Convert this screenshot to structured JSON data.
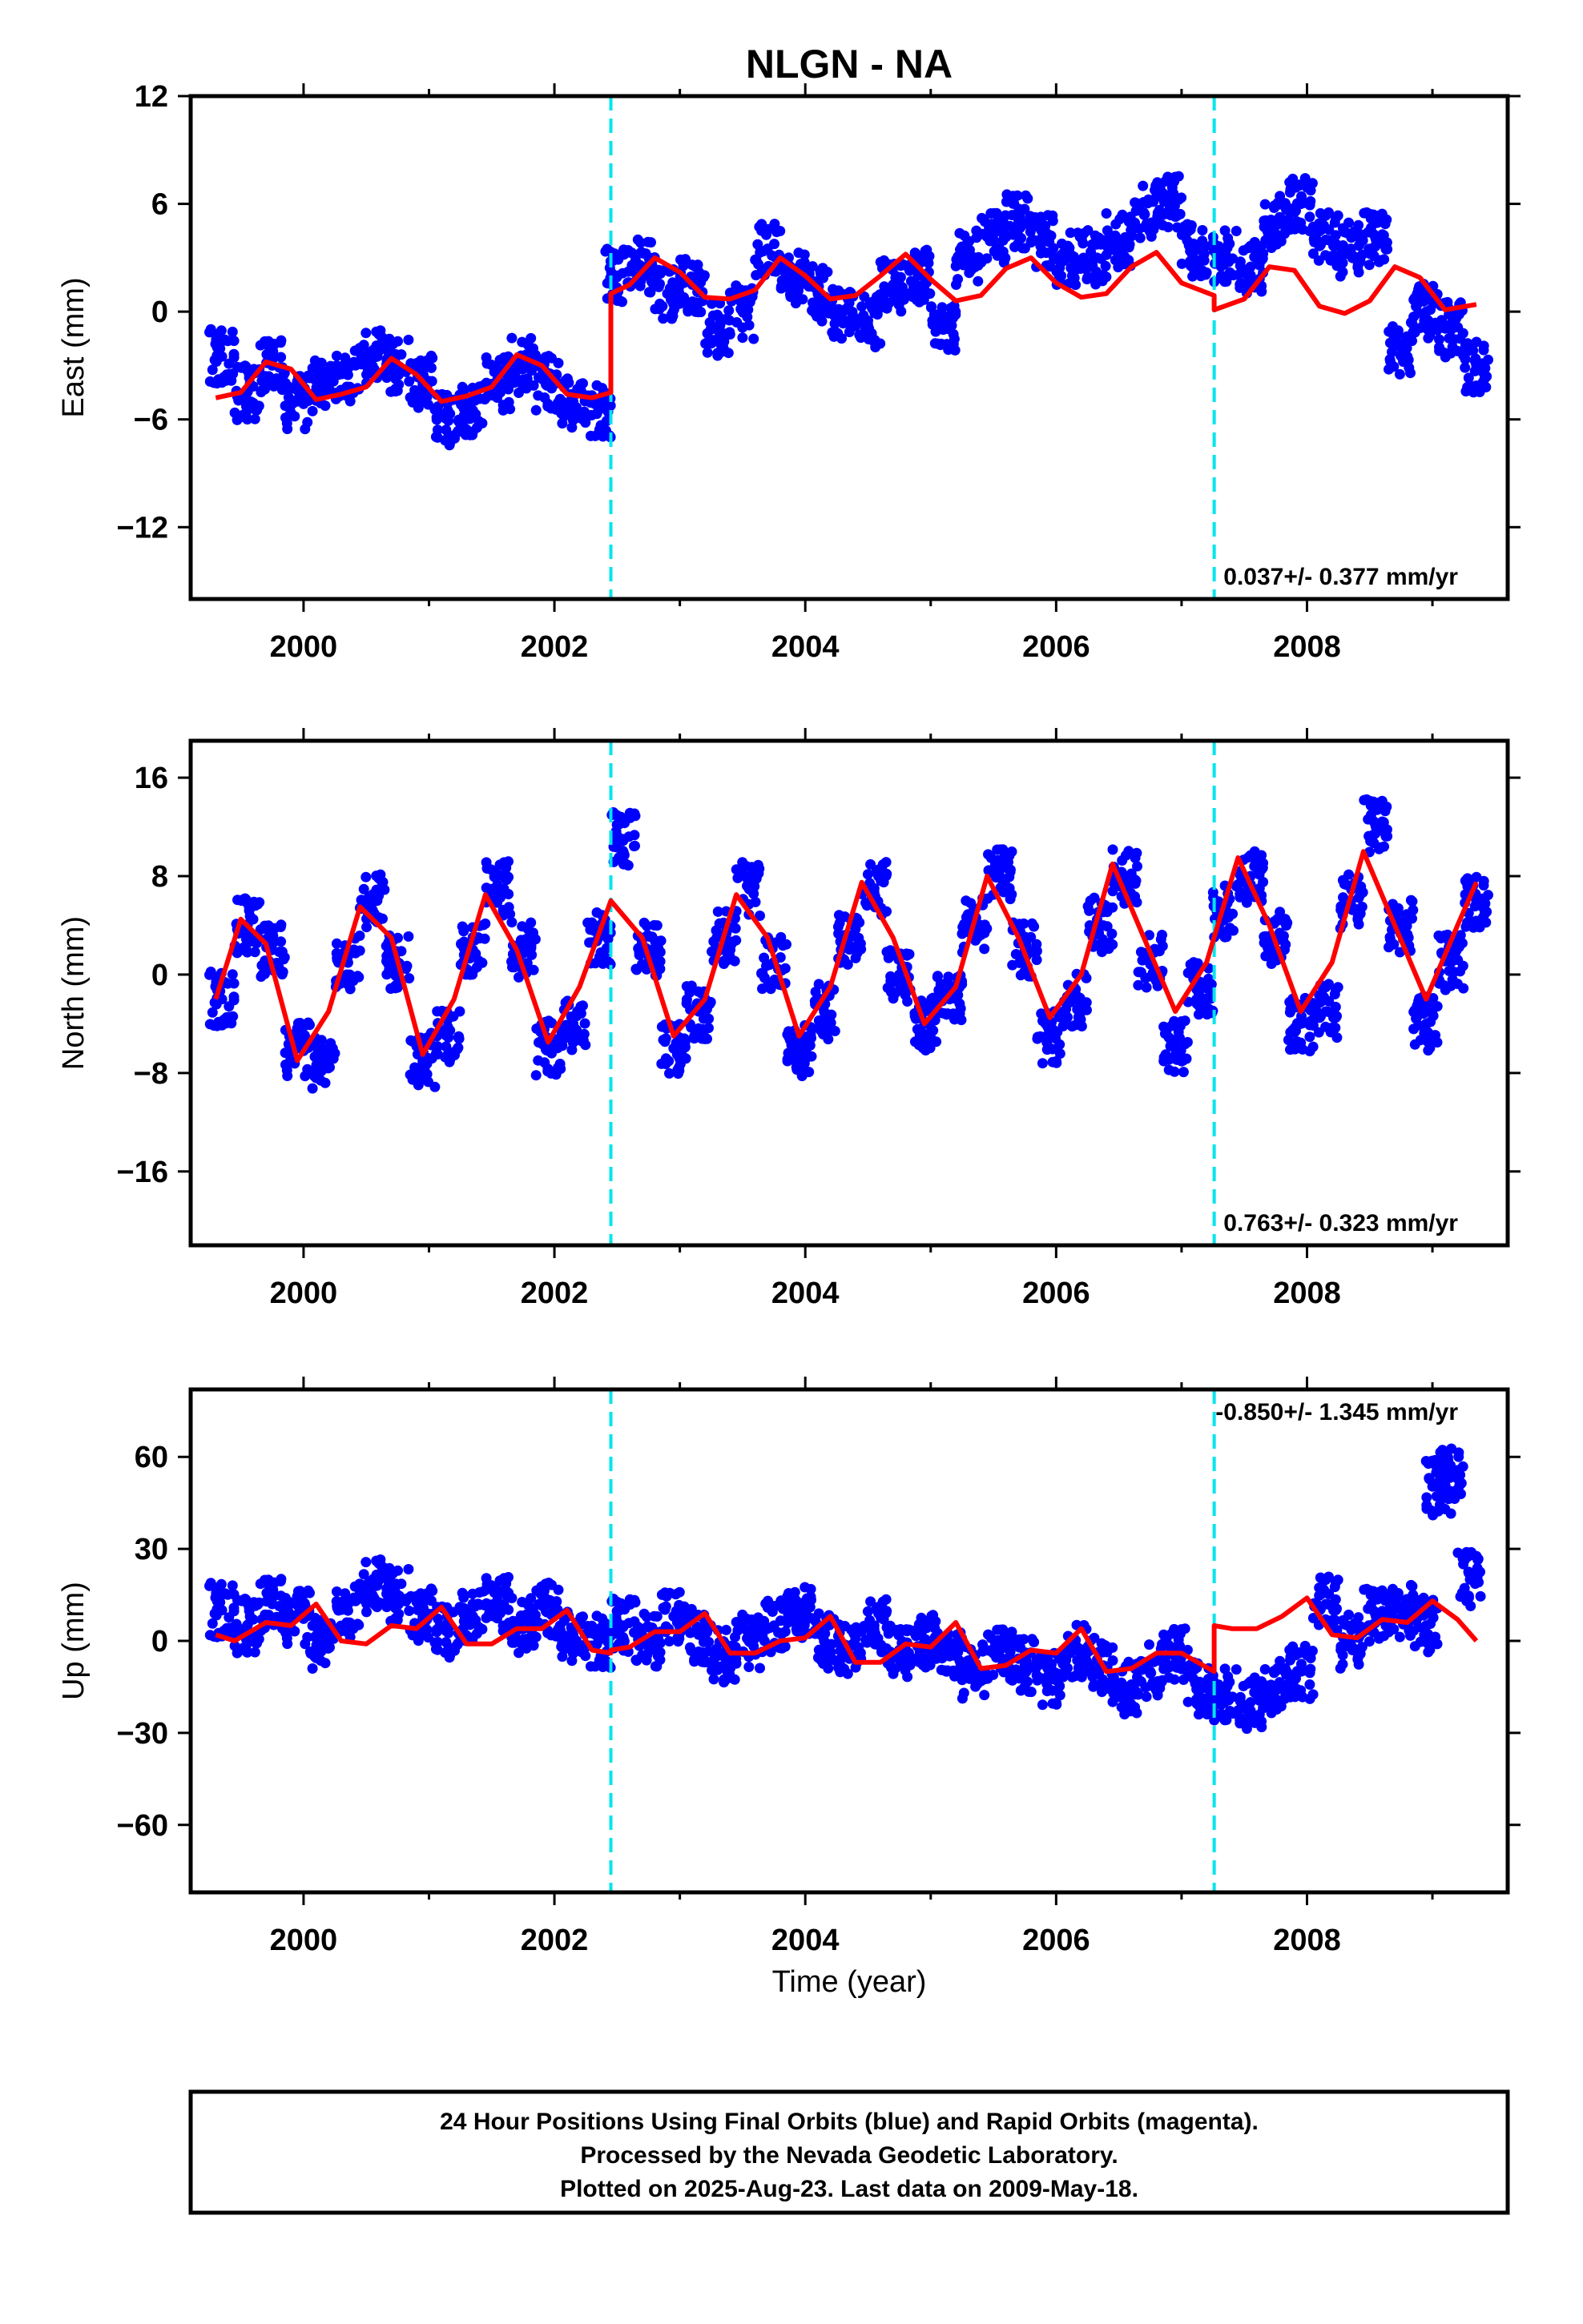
{
  "title": "NLGN - NA",
  "colors": {
    "observations": "#0000ff",
    "model": "#ff0000",
    "offset_marker": "#00e5ee",
    "frame": "#000000"
  },
  "xlabel": "Time (year)",
  "caption": [
    "24 Hour Positions Using Final Orbits (blue) and Rapid Orbits (magenta).",
    "Processed by the Nevada Geodetic Laboratory.",
    "Plotted on 2025-Aug-23. Last data on 2009-May-18."
  ],
  "chart_data": [
    {
      "type": "scatter",
      "name": "east",
      "ylabel": "East (mm)",
      "rate_label": "0.037+/- 0.377 mm/yr",
      "rate_position": "bottom-right",
      "xlim": [
        1999.1,
        2009.6
      ],
      "ylim": [
        -16,
        12
      ],
      "xticks": [
        2000,
        2002,
        2004,
        2006,
        2008
      ],
      "yticks": [
        -12,
        -6,
        0,
        6,
        12
      ],
      "offsets": [
        2002.45,
        2007.26
      ],
      "x": [
        1999.35,
        1999.55,
        1999.75,
        1999.95,
        2000.15,
        2000.35,
        2000.55,
        2000.75,
        2000.95,
        2001.15,
        2001.35,
        2001.55,
        2001.75,
        2001.95,
        2002.15,
        2002.35,
        2002.5,
        2002.7,
        2002.9,
        2003.1,
        2003.3,
        2003.5,
        2003.7,
        2003.9,
        2004.1,
        2004.3,
        2004.5,
        2004.7,
        2004.9,
        2005.1,
        2005.3,
        2005.5,
        2005.7,
        2005.9,
        2006.1,
        2006.3,
        2006.5,
        2006.7,
        2006.9,
        2007.1,
        2007.35,
        2007.55,
        2007.75,
        2007.95,
        2008.15,
        2008.35,
        2008.55,
        2008.75,
        2008.95,
        2009.15,
        2009.35
      ],
      "y": [
        -2.5,
        -4.5,
        -3,
        -5,
        -4,
        -3.5,
        -2.5,
        -3,
        -4,
        -6,
        -5.5,
        -4,
        -3,
        -4,
        -5,
        -5.5,
        2,
        2.5,
        1,
        1.5,
        -1,
        0,
        3.5,
        2,
        1,
        0,
        -0.5,
        1.5,
        2,
        -1,
        3,
        4,
        5,
        4,
        3,
        3,
        4,
        5.5,
        6,
        3.5,
        3,
        2.5,
        5,
        6,
        4,
        3.5,
        4,
        -2,
        0,
        -1,
        -3
      ],
      "model": {
        "x": [
          1999.3,
          1999.5,
          1999.7,
          1999.9,
          2000.1,
          2000.3,
          2000.5,
          2000.7,
          2000.9,
          2001.1,
          2001.3,
          2001.5,
          2001.7,
          2001.9,
          2002.1,
          2002.3,
          2002.45,
          2002.45,
          2002.6,
          2002.8,
          2003.0,
          2003.2,
          2003.4,
          2003.6,
          2003.8,
          2004.0,
          2004.2,
          2004.4,
          2004.6,
          2004.8,
          2005.0,
          2005.2,
          2005.4,
          2005.6,
          2005.8,
          2006.0,
          2006.2,
          2006.4,
          2006.6,
          2006.8,
          2007.0,
          2007.26,
          2007.26,
          2007.5,
          2007.7,
          2007.9,
          2008.1,
          2008.3,
          2008.5,
          2008.7,
          2008.9,
          2009.1,
          2009.35
        ],
        "y": [
          -4.8,
          -4.5,
          -2.8,
          -3.2,
          -4.9,
          -4.6,
          -4.2,
          -2.6,
          -3.5,
          -5.0,
          -4.7,
          -4.2,
          -2.4,
          -3.0,
          -4.6,
          -4.8,
          -4.5,
          1.0,
          1.5,
          3.0,
          2.2,
          0.8,
          0.7,
          1.2,
          3.0,
          2.0,
          0.7,
          0.9,
          2.0,
          3.2,
          1.8,
          0.6,
          0.9,
          2.4,
          3.0,
          1.6,
          0.8,
          1.0,
          2.5,
          3.3,
          1.6,
          0.9,
          0.1,
          0.7,
          2.5,
          2.3,
          0.3,
          -0.1,
          0.6,
          2.5,
          1.9,
          0.1,
          0.4
        ]
      }
    },
    {
      "type": "scatter",
      "name": "north",
      "ylabel": "North (mm)",
      "rate_label": "0.763+/- 0.323 mm/yr",
      "rate_position": "bottom-right",
      "xlim": [
        1999.1,
        2009.6
      ],
      "ylim": [
        -22,
        19
      ],
      "xticks": [
        2000,
        2002,
        2004,
        2006,
        2008
      ],
      "yticks": [
        -16,
        -8,
        0,
        8,
        16
      ],
      "offsets": [
        2002.45,
        2007.26
      ],
      "x": [
        1999.35,
        1999.55,
        1999.75,
        1999.95,
        2000.15,
        2000.35,
        2000.55,
        2000.75,
        2000.95,
        2001.15,
        2001.35,
        2001.55,
        2001.75,
        2001.95,
        2002.15,
        2002.35,
        2002.55,
        2002.75,
        2002.95,
        2003.15,
        2003.35,
        2003.55,
        2003.75,
        2003.95,
        2004.15,
        2004.35,
        2004.55,
        2004.75,
        2004.95,
        2005.15,
        2005.35,
        2005.55,
        2005.75,
        2005.95,
        2006.15,
        2006.35,
        2006.55,
        2006.75,
        2006.95,
        2007.15,
        2007.35,
        2007.55,
        2007.75,
        2007.95,
        2008.15,
        2008.35,
        2008.55,
        2008.75,
        2008.95,
        2009.15,
        2009.35
      ],
      "y": [
        -2,
        4,
        2,
        -6,
        -7,
        1,
        6,
        1,
        -7,
        -5,
        2,
        7,
        2,
        -6,
        -4,
        3,
        11,
        2,
        -6,
        -3,
        3,
        7,
        1,
        -6,
        -3,
        3,
        7,
        0,
        -4,
        -2,
        4,
        8,
        2,
        -5,
        -2,
        4,
        8,
        1,
        -6,
        -1,
        5,
        8,
        3,
        -4,
        -3,
        6,
        12,
        4,
        -4,
        1,
        6
      ],
      "model": {
        "x": [
          1999.3,
          1999.5,
          1999.7,
          1999.95,
          2000.2,
          2000.45,
          2000.7,
          2000.95,
          2001.2,
          2001.45,
          2001.7,
          2001.95,
          2002.2,
          2002.45,
          2002.7,
          2002.95,
          2003.2,
          2003.45,
          2003.7,
          2003.95,
          2004.2,
          2004.45,
          2004.7,
          2004.95,
          2005.2,
          2005.45,
          2005.7,
          2005.95,
          2006.2,
          2006.45,
          2006.7,
          2006.95,
          2007.2,
          2007.45,
          2007.7,
          2007.95,
          2008.2,
          2008.45,
          2008.7,
          2008.95,
          2009.2,
          2009.35
        ],
        "y": [
          -2,
          4.5,
          2.5,
          -7,
          -3,
          5.5,
          3,
          -6.5,
          -2,
          6.5,
          2,
          -5.5,
          -1,
          6,
          3,
          -5,
          -2,
          6.5,
          3,
          -5,
          -1,
          7.5,
          3,
          -4,
          -1,
          8,
          3,
          -3.5,
          0,
          9,
          3,
          -3,
          1,
          9.5,
          4,
          -3,
          1,
          10,
          4,
          -2,
          4,
          7.5
        ]
      }
    },
    {
      "type": "scatter",
      "name": "up",
      "ylabel": "Up (mm)",
      "rate_label": "-0.850+/- 1.345 mm/yr",
      "rate_position": "top-right",
      "xlim": [
        1999.1,
        2009.6
      ],
      "ylim": [
        -82,
        82
      ],
      "xticks": [
        2000,
        2002,
        2004,
        2006,
        2008
      ],
      "yticks": [
        -60,
        -30,
        0,
        30,
        60
      ],
      "offsets": [
        2002.45,
        2007.26
      ],
      "x": [
        1999.35,
        1999.55,
        1999.75,
        1999.95,
        2000.15,
        2000.35,
        2000.55,
        2000.75,
        2000.95,
        2001.15,
        2001.35,
        2001.55,
        2001.75,
        2001.95,
        2002.15,
        2002.35,
        2002.55,
        2002.75,
        2002.95,
        2003.15,
        2003.35,
        2003.55,
        2003.75,
        2003.95,
        2004.15,
        2004.35,
        2004.55,
        2004.75,
        2004.95,
        2005.15,
        2005.35,
        2005.55,
        2005.75,
        2005.95,
        2006.15,
        2006.35,
        2006.55,
        2006.75,
        2006.95,
        2007.15,
        2007.35,
        2007.55,
        2007.75,
        2007.95,
        2008.15,
        2008.35,
        2008.55,
        2008.75,
        2008.95,
        2009.05,
        2009.15,
        2009.3
      ],
      "y": [
        10,
        5,
        12,
        8,
        0,
        10,
        18,
        15,
        8,
        3,
        8,
        12,
        5,
        10,
        2,
        0,
        5,
        0,
        8,
        2,
        -5,
        0,
        5,
        10,
        0,
        -2,
        5,
        -3,
        0,
        -5,
        -10,
        -5,
        -8,
        -12,
        -3,
        -8,
        -15,
        -10,
        -5,
        -15,
        -18,
        -20,
        -15,
        -10,
        12,
        0,
        8,
        10,
        5,
        50,
        55,
        20
      ],
      "model": {
        "x": [
          1999.3,
          1999.45,
          1999.7,
          1999.9,
          2000.1,
          2000.3,
          2000.5,
          2000.7,
          2000.9,
          2001.1,
          2001.3,
          2001.5,
          2001.7,
          2001.9,
          2002.1,
          2002.3,
          2002.45,
          2002.45,
          2002.6,
          2002.8,
          2003.0,
          2003.2,
          2003.4,
          2003.6,
          2003.8,
          2004.0,
          2004.2,
          2004.4,
          2004.6,
          2004.8,
          2005.0,
          2005.2,
          2005.4,
          2005.6,
          2005.8,
          2006.0,
          2006.2,
          2006.4,
          2006.6,
          2006.8,
          2007.0,
          2007.26,
          2007.26,
          2007.4,
          2007.6,
          2007.8,
          2008.0,
          2008.2,
          2008.4,
          2008.6,
          2008.8,
          2009.0,
          2009.2,
          2009.35
        ],
        "y": [
          2,
          0,
          6,
          5,
          12,
          0,
          -1,
          5,
          4,
          11,
          -1,
          -1,
          4,
          4,
          10,
          -3,
          -4,
          -3,
          -2,
          3,
          3,
          9,
          -4,
          -4,
          0,
          1,
          8,
          -7,
          -7,
          -1,
          -2,
          6,
          -9,
          -8,
          -3,
          -4,
          4,
          -10,
          -9,
          -4,
          -4,
          -10,
          5,
          4,
          4,
          8,
          14,
          2,
          1,
          7,
          6,
          13,
          7,
          0
        ]
      }
    }
  ]
}
